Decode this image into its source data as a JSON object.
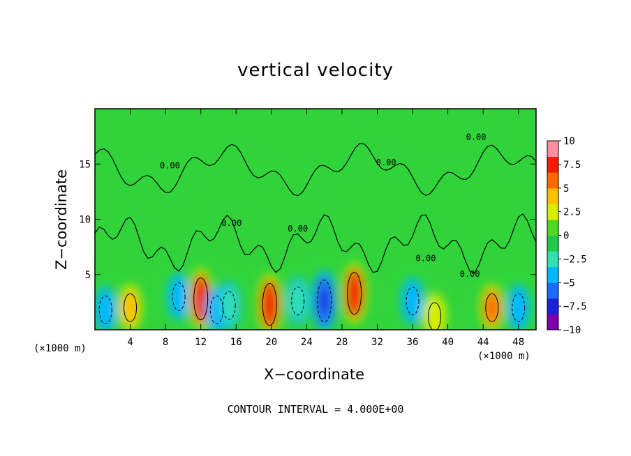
{
  "chart_data": {
    "type": "heatmap",
    "title": "vertical velocity",
    "xlabel": "X−coordinate",
    "ylabel": "Z−coordinate",
    "x_unit_left": "(×1000 m)",
    "x_unit_right": "(×1000 m)",
    "xlim": [
      0,
      50
    ],
    "ylim": [
      0,
      20
    ],
    "x_ticks": [
      4,
      8,
      12,
      16,
      20,
      24,
      28,
      32,
      36,
      40,
      44,
      48
    ],
    "y_ticks": [
      5,
      10,
      15
    ],
    "colorbar": {
      "ticks": [
        "10",
        "7.5",
        "5",
        "2.5",
        "0",
        "−2.5",
        "−5",
        "−7.5",
        "−10"
      ],
      "min": -10,
      "max": 10
    },
    "contour_label": "0.00",
    "footer": "CONTOUR INTERVAL = 4.000E+00",
    "features": [
      {
        "x": 1.2,
        "z": 1.8,
        "value": -6
      },
      {
        "x": 4.0,
        "z": 2.0,
        "value": 4
      },
      {
        "x": 9.5,
        "z": 3.0,
        "value": -5
      },
      {
        "x": 12.0,
        "z": 2.8,
        "value": 8
      },
      {
        "x": 13.8,
        "z": 1.8,
        "value": -6
      },
      {
        "x": 15.2,
        "z": 2.2,
        "value": -4
      },
      {
        "x": 19.8,
        "z": 2.3,
        "value": 9
      },
      {
        "x": 23.0,
        "z": 2.6,
        "value": -4
      },
      {
        "x": 26.0,
        "z": 2.6,
        "value": -8
      },
      {
        "x": 29.4,
        "z": 3.3,
        "value": 8
      },
      {
        "x": 36.0,
        "z": 2.6,
        "value": -5
      },
      {
        "x": 38.5,
        "z": 1.2,
        "value": 3
      },
      {
        "x": 45.0,
        "z": 2.0,
        "value": 6
      },
      {
        "x": 48.0,
        "z": 2.0,
        "value": -6
      }
    ]
  },
  "colors": {
    "scale": [
      "#7d00a8",
      "#1d1fd9",
      "#1c6bff",
      "#00b8ff",
      "#33e0b0",
      "#22c84a",
      "#4ed820",
      "#d8ee00",
      "#ffc000",
      "#ff6a00",
      "#f21b00",
      "#ff8fa0"
    ]
  }
}
